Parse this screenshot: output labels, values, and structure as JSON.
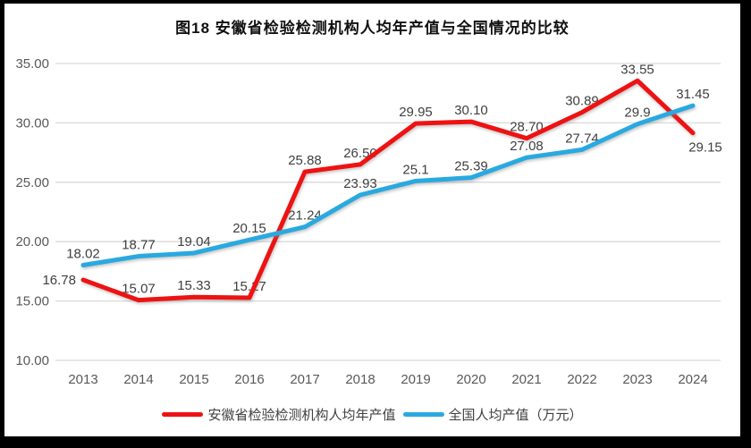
{
  "frame": {
    "border_color": "#000000",
    "background": "#ffffff"
  },
  "chart_data": {
    "type": "line",
    "title": "图18 安徽省检验检测机构人均年产值与全国情况的比较",
    "categories": [
      "2013",
      "2014",
      "2015",
      "2016",
      "2017",
      "2018",
      "2019",
      "2020",
      "2021",
      "2022",
      "2023",
      "2024"
    ],
    "series": [
      {
        "name": "安徽省检验检测机构人均年产值",
        "color": "#EE1212",
        "values": [
          16.78,
          15.07,
          15.33,
          15.27,
          25.88,
          26.5,
          29.95,
          30.1,
          28.7,
          30.89,
          33.55,
          29.15
        ],
        "labels": [
          "16.78",
          "15.07",
          "15.33",
          "15.27",
          "25.88",
          "26.50",
          "29.95",
          "30.10",
          "28.70",
          "30.89",
          "33.55",
          "29.15"
        ]
      },
      {
        "name": "全国人均产值（万元）",
        "color": "#29A9E0",
        "values": [
          18.02,
          18.77,
          19.04,
          20.15,
          21.24,
          23.93,
          25.1,
          25.39,
          27.08,
          27.74,
          29.9,
          31.45
        ],
        "labels": [
          "18.02",
          "18.77",
          "19.04",
          "20.15",
          "21.24",
          "23.93",
          "25.1",
          "25.39",
          "27.08",
          "27.74",
          "29.9",
          "31.45"
        ]
      }
    ],
    "y_axis": {
      "ticks": [
        "10.00",
        "15.00",
        "20.00",
        "25.00",
        "30.00",
        "35.00"
      ],
      "min": 10,
      "max": 35,
      "grid": true
    },
    "x_axis": {
      "label": ""
    },
    "legend_position": "bottom",
    "colors": {
      "gridline": "#D9D9D9",
      "axis_text": "#595959",
      "data_label_text": "#3f3f3f"
    }
  }
}
